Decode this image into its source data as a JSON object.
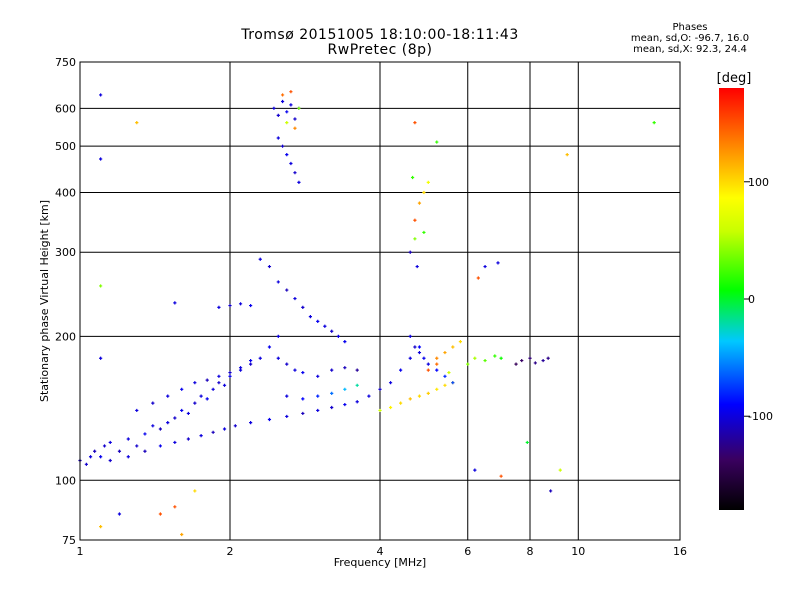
{
  "header": {
    "title_line1": "Tromsø 20151005 18:10:00-18:11:43",
    "title_line2": "RwPretec (8p)"
  },
  "stats": {
    "heading": "Phases",
    "line_O": "mean, sd,O: -96.7, 16.0",
    "line_X": "mean, sd,X:  92.3, 24.4"
  },
  "chart_data": {
    "type": "scatter",
    "xlabel": "Frequency [MHz]",
    "ylabel": "Stationary phase Virtual Height [km]",
    "xscale": "log",
    "yscale": "log",
    "xlim": [
      1,
      16
    ],
    "ylim": [
      75,
      750
    ],
    "x_ticks": [
      1,
      2,
      4,
      6,
      8,
      10,
      16
    ],
    "x_tick_labels": [
      "1",
      "2",
      "4",
      "6",
      "8",
      "10",
      "16"
    ],
    "y_ticks": [
      75,
      100,
      200,
      300,
      400,
      500,
      600,
      750
    ],
    "y_tick_labels": [
      "75",
      "100",
      "200",
      "300",
      "400",
      "500",
      "600",
      "750"
    ],
    "grid": true,
    "colorbar": {
      "label": "[deg]",
      "range": [
        -180,
        180
      ],
      "ticks": [
        100,
        0,
        -100
      ],
      "tick_labels": [
        "100",
        "0",
        "-100"
      ],
      "colormap": "rainbow"
    },
    "series": [
      {
        "points": [
          [
            1.0,
            110,
            -110
          ],
          [
            1.03,
            108,
            -105
          ],
          [
            1.05,
            112,
            -100
          ],
          [
            1.07,
            115,
            -110
          ],
          [
            1.1,
            112,
            -95
          ],
          [
            1.12,
            118,
            -105
          ],
          [
            1.15,
            120,
            -100
          ],
          [
            1.2,
            115,
            -110
          ],
          [
            1.25,
            122,
            -100
          ],
          [
            1.3,
            118,
            -105
          ],
          [
            1.35,
            125,
            -95
          ],
          [
            1.4,
            130,
            -100
          ],
          [
            1.45,
            128,
            -110
          ],
          [
            1.5,
            132,
            -100
          ],
          [
            1.55,
            135,
            -105
          ],
          [
            1.6,
            140,
            -95
          ],
          [
            1.65,
            138,
            -100
          ],
          [
            1.7,
            145,
            -105
          ],
          [
            1.75,
            150,
            -100
          ],
          [
            1.8,
            148,
            -95
          ],
          [
            1.85,
            155,
            -100
          ],
          [
            1.9,
            160,
            -105
          ],
          [
            1.95,
            158,
            -100
          ],
          [
            2.0,
            165,
            -95
          ],
          [
            2.1,
            170,
            -100
          ],
          [
            2.2,
            175,
            -105
          ],
          [
            2.3,
            180,
            -100
          ],
          [
            2.4,
            190,
            -95
          ],
          [
            2.5,
            200,
            -100
          ],
          [
            1.15,
            110,
            -105
          ],
          [
            1.25,
            112,
            -100
          ],
          [
            1.35,
            115,
            -110
          ],
          [
            1.45,
            118,
            -95
          ],
          [
            1.55,
            120,
            -100
          ],
          [
            1.65,
            122,
            -105
          ],
          [
            1.75,
            124,
            -100
          ],
          [
            1.85,
            126,
            -110
          ],
          [
            1.95,
            128,
            -100
          ],
          [
            2.05,
            130,
            -105
          ],
          [
            2.2,
            132,
            -100
          ],
          [
            2.4,
            134,
            -95
          ],
          [
            2.6,
            136,
            -100
          ],
          [
            2.8,
            138,
            -110
          ],
          [
            3.0,
            140,
            -100
          ],
          [
            3.2,
            142,
            -105
          ],
          [
            3.4,
            144,
            -95
          ],
          [
            3.6,
            146,
            -100
          ],
          [
            3.8,
            150,
            -100
          ],
          [
            4.0,
            155,
            -105
          ],
          [
            4.2,
            160,
            -100
          ],
          [
            4.4,
            170,
            -95
          ],
          [
            4.6,
            180,
            -100
          ],
          [
            4.8,
            190,
            -90
          ],
          [
            1.3,
            140,
            -100
          ],
          [
            1.4,
            145,
            -105
          ],
          [
            1.5,
            150,
            -100
          ],
          [
            1.6,
            155,
            -95
          ],
          [
            1.7,
            160,
            -100
          ],
          [
            1.8,
            162,
            -110
          ],
          [
            1.9,
            165,
            -100
          ],
          [
            2.0,
            168,
            -105
          ],
          [
            2.1,
            172,
            -100
          ],
          [
            2.2,
            178,
            -95
          ],
          [
            1.9,
            230,
            -100
          ],
          [
            2.0,
            232,
            -105
          ],
          [
            2.1,
            234,
            -100
          ],
          [
            2.2,
            232,
            -95
          ],
          [
            2.3,
            290,
            -100
          ],
          [
            2.4,
            280,
            -105
          ],
          [
            2.5,
            260,
            -100
          ],
          [
            2.6,
            250,
            -110
          ],
          [
            2.7,
            240,
            -100
          ],
          [
            2.8,
            230,
            -105
          ],
          [
            2.9,
            220,
            -100
          ],
          [
            3.0,
            215,
            -95
          ],
          [
            3.1,
            210,
            -100
          ],
          [
            3.2,
            205,
            -105
          ],
          [
            3.3,
            200,
            -100
          ],
          [
            3.4,
            195,
            -95
          ],
          [
            2.5,
            180,
            -100
          ],
          [
            2.6,
            175,
            -105
          ],
          [
            2.7,
            170,
            -100
          ],
          [
            2.8,
            168,
            -95
          ],
          [
            3.0,
            165,
            -100
          ],
          [
            3.2,
            170,
            -105
          ],
          [
            3.4,
            172,
            -110
          ],
          [
            3.6,
            170,
            -120
          ],
          [
            2.6,
            150,
            -100
          ],
          [
            2.8,
            148,
            -90
          ],
          [
            3.0,
            150,
            -80
          ],
          [
            3.2,
            152,
            -60
          ],
          [
            3.4,
            155,
            -40
          ],
          [
            3.6,
            158,
            -20
          ],
          [
            4.0,
            140,
            60
          ],
          [
            4.2,
            142,
            90
          ],
          [
            4.4,
            145,
            100
          ],
          [
            4.6,
            148,
            110
          ],
          [
            4.8,
            150,
            100
          ],
          [
            5.0,
            152,
            105
          ],
          [
            5.2,
            155,
            95
          ],
          [
            5.4,
            158,
            100
          ],
          [
            5.6,
            160,
            110
          ],
          [
            4.6,
            200,
            -100
          ],
          [
            4.7,
            190,
            -105
          ],
          [
            4.8,
            185,
            -100
          ],
          [
            4.9,
            180,
            -95
          ],
          [
            5.0,
            175,
            -100
          ],
          [
            5.2,
            170,
            -90
          ],
          [
            5.4,
            165,
            -80
          ],
          [
            5.6,
            160,
            -70
          ],
          [
            5.2,
            180,
            130
          ],
          [
            5.4,
            185,
            120
          ],
          [
            5.6,
            190,
            110
          ],
          [
            5.8,
            195,
            100
          ],
          [
            5.0,
            170,
            150
          ],
          [
            5.2,
            175,
            140
          ],
          [
            5.5,
            168,
            60
          ],
          [
            6.0,
            175,
            40
          ],
          [
            6.2,
            180,
            50
          ],
          [
            6.5,
            178,
            30
          ],
          [
            6.8,
            182,
            20
          ],
          [
            7.0,
            180,
            10
          ],
          [
            7.5,
            175,
            -140
          ],
          [
            7.7,
            178,
            -135
          ],
          [
            8.0,
            180,
            -130
          ],
          [
            8.2,
            176,
            -125
          ],
          [
            8.5,
            178,
            -120
          ],
          [
            8.7,
            180,
            -125
          ],
          [
            2.45,
            600,
            -100
          ],
          [
            2.5,
            580,
            -105
          ],
          [
            2.55,
            620,
            -100
          ],
          [
            2.6,
            590,
            -95
          ],
          [
            2.65,
            610,
            -100
          ],
          [
            2.7,
            570,
            -105
          ],
          [
            2.75,
            600,
            -100
          ],
          [
            2.5,
            520,
            -100
          ],
          [
            2.55,
            500,
            -105
          ],
          [
            2.6,
            480,
            -95
          ],
          [
            2.65,
            460,
            -100
          ],
          [
            2.7,
            440,
            -105
          ],
          [
            2.75,
            420,
            -100
          ],
          [
            2.55,
            640,
            140
          ],
          [
            2.65,
            650,
            150
          ],
          [
            2.75,
            600,
            40
          ],
          [
            2.6,
            560,
            60
          ],
          [
            2.7,
            545,
            130
          ],
          [
            4.6,
            300,
            -110
          ],
          [
            4.7,
            350,
            150
          ],
          [
            4.8,
            380,
            120
          ],
          [
            4.9,
            400,
            100
          ],
          [
            5.0,
            420,
            80
          ],
          [
            4.7,
            320,
            40
          ],
          [
            4.9,
            330,
            20
          ],
          [
            4.65,
            430,
            20
          ],
          [
            4.75,
            280,
            -100
          ],
          [
            4.7,
            560,
            150
          ],
          [
            5.2,
            510,
            20
          ],
          [
            9.5,
            480,
            110
          ],
          [
            14.2,
            560,
            20
          ],
          [
            1.1,
            640,
            -100
          ],
          [
            1.1,
            470,
            -100
          ],
          [
            1.1,
            255,
            40
          ],
          [
            1.3,
            560,
            110
          ],
          [
            1.1,
            180,
            -100
          ],
          [
            1.2,
            85,
            -100
          ],
          [
            1.1,
            80,
            110
          ],
          [
            1.45,
            85,
            150
          ],
          [
            1.55,
            88,
            150
          ],
          [
            1.6,
            77,
            120
          ],
          [
            1.7,
            95,
            100
          ],
          [
            6.3,
            265,
            150
          ],
          [
            6.5,
            280,
            -100
          ],
          [
            6.9,
            285,
            -100
          ],
          [
            6.2,
            105,
            -100
          ],
          [
            7.0,
            102,
            150
          ],
          [
            8.8,
            95,
            -110
          ],
          [
            9.2,
            105,
            60
          ],
          [
            7.9,
            120,
            0
          ],
          [
            1.55,
            235,
            -100
          ]
        ]
      }
    ]
  }
}
